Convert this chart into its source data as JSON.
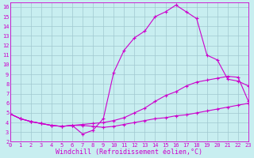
{
  "xlabel": "Windchill (Refroidissement éolien,°C)",
  "bg_color": "#c8eef0",
  "grid_color": "#a0c8d0",
  "line_color": "#cc00cc",
  "marker": "+",
  "markersize": 3,
  "linewidth": 0.8,
  "xlim": [
    0,
    23
  ],
  "ylim": [
    2,
    16.5
  ],
  "xticks": [
    0,
    1,
    2,
    3,
    4,
    5,
    6,
    7,
    8,
    9,
    10,
    11,
    12,
    13,
    14,
    15,
    16,
    17,
    18,
    19,
    20,
    21,
    22,
    23
  ],
  "yticks": [
    2,
    3,
    4,
    5,
    6,
    7,
    8,
    9,
    10,
    11,
    12,
    13,
    14,
    15,
    16
  ],
  "line1_x": [
    0,
    1,
    2,
    3,
    4,
    5,
    6,
    7,
    8,
    9,
    10,
    11,
    12,
    13,
    14,
    15,
    16,
    17,
    18,
    19,
    20,
    21,
    22,
    23
  ],
  "line1_y": [
    4.9,
    4.4,
    4.1,
    3.9,
    3.7,
    3.6,
    3.7,
    3.7,
    3.6,
    3.5,
    3.6,
    3.8,
    4.0,
    4.2,
    4.4,
    4.5,
    4.7,
    4.8,
    5.0,
    5.2,
    5.4,
    5.6,
    5.8,
    6.0
  ],
  "line2_x": [
    0,
    1,
    2,
    3,
    4,
    5,
    6,
    7,
    8,
    9,
    10,
    11,
    12,
    13,
    14,
    15,
    16,
    17,
    18,
    19,
    20,
    21,
    22,
    23
  ],
  "line2_y": [
    4.9,
    4.4,
    4.1,
    3.9,
    3.7,
    3.6,
    3.7,
    3.8,
    3.9,
    4.0,
    4.2,
    4.5,
    5.0,
    5.5,
    6.2,
    6.8,
    7.2,
    7.8,
    8.2,
    8.4,
    8.6,
    8.8,
    8.7,
    6.2
  ],
  "line3_x": [
    0,
    1,
    2,
    3,
    4,
    5,
    6,
    7,
    8,
    9,
    10,
    11,
    12,
    13,
    14,
    15,
    16,
    17,
    18,
    19,
    20,
    21,
    22,
    23
  ],
  "line3_y": [
    4.9,
    4.4,
    4.1,
    3.9,
    3.7,
    3.6,
    3.7,
    2.8,
    3.2,
    4.4,
    9.2,
    11.5,
    12.8,
    13.5,
    15.0,
    15.5,
    16.2,
    15.5,
    14.8,
    11.0,
    10.5,
    8.5,
    8.3,
    7.8
  ],
  "tick_fontsize": 5.0,
  "xlabel_fontsize": 6.0
}
